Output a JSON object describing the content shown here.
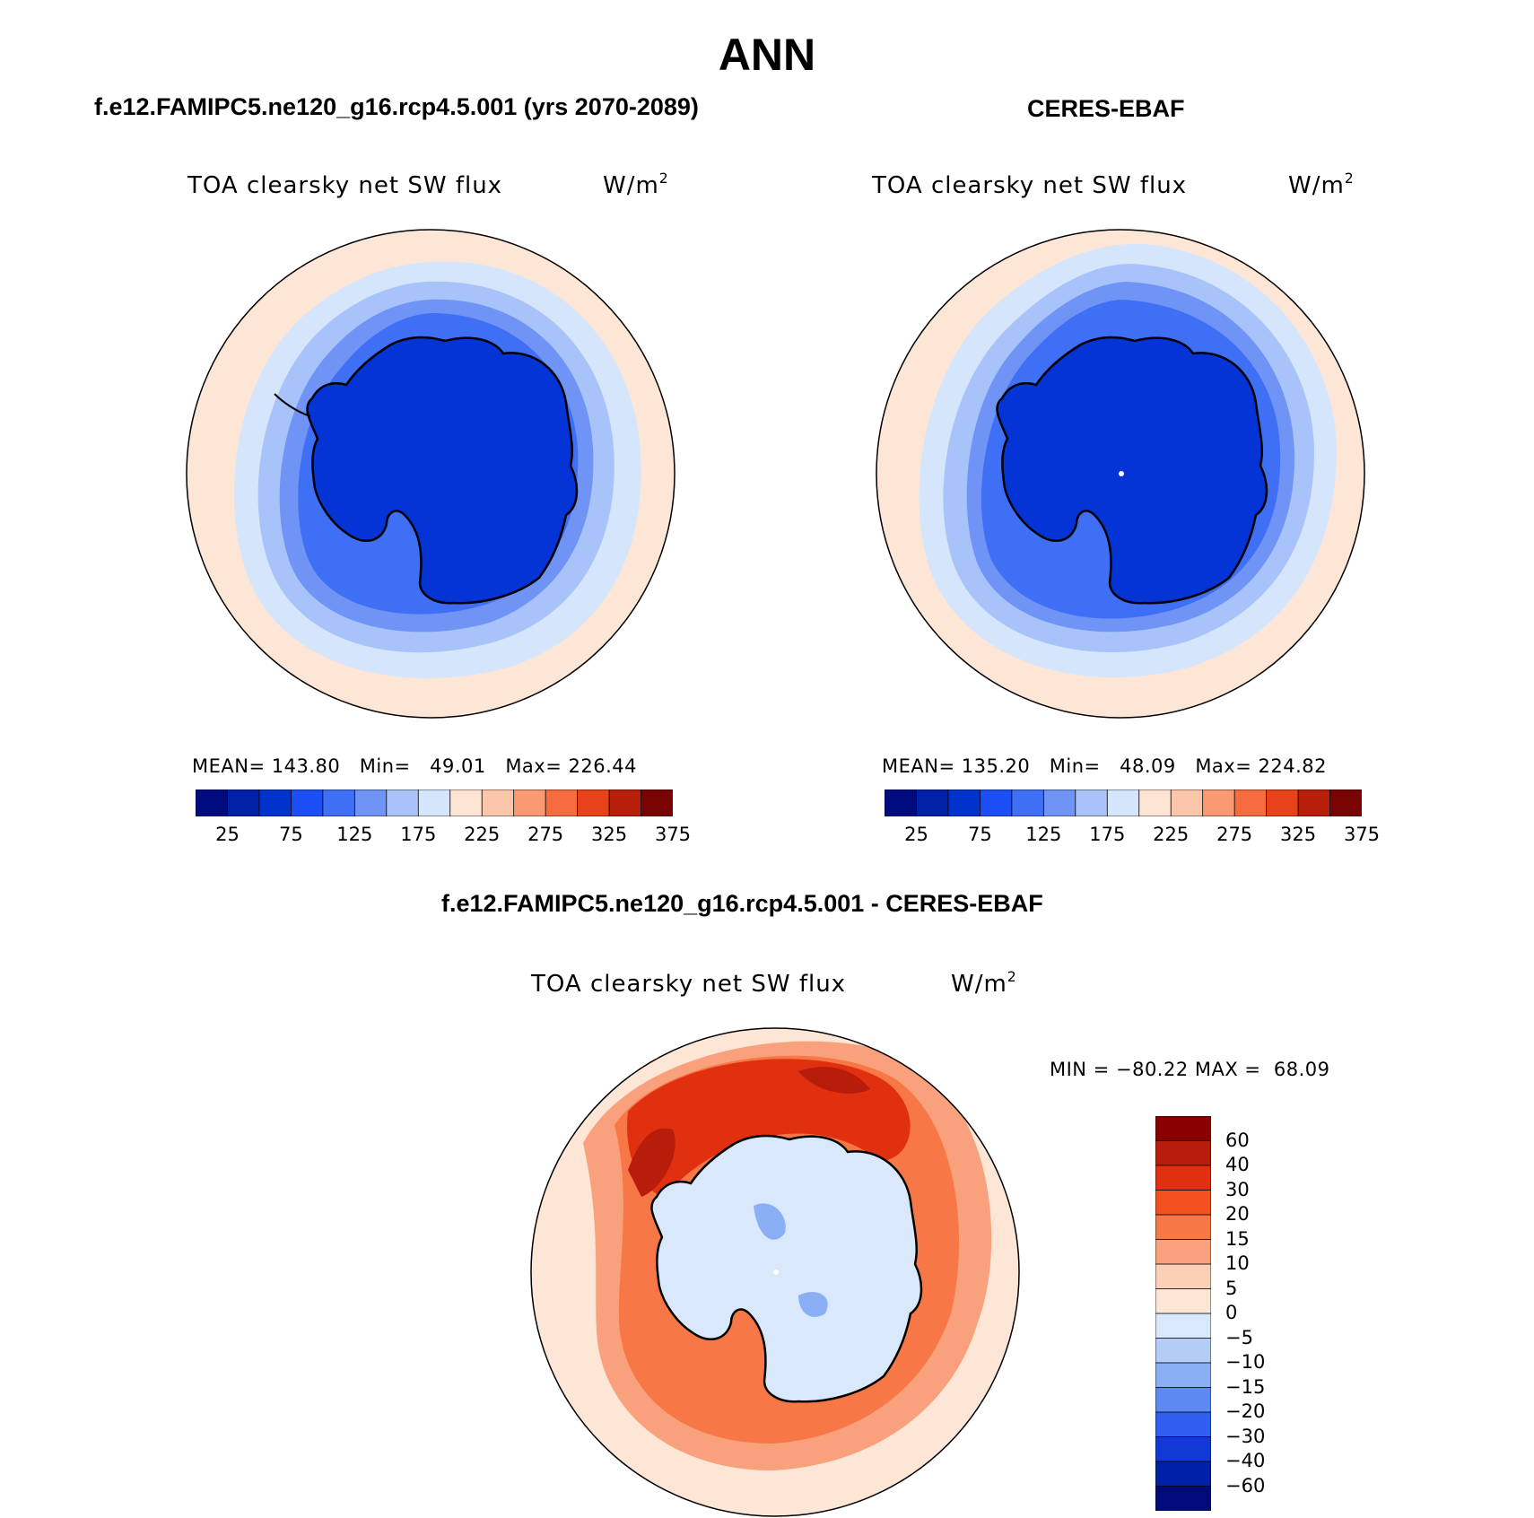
{
  "main_title": "ANN",
  "panels": [
    {
      "title": "f.e12.FAMIPC5.ne120_g16.rcp4.5.001 (yrs 2070-2089)",
      "variable": "TOA clearsky net SW flux",
      "units_base": "W/m",
      "units_exp": "2",
      "mean_label": "MEAN=",
      "mean_value": "143.80",
      "min_label": "Min=",
      "min_value": "49.01",
      "max_label": "Max=",
      "max_value": "226.44"
    },
    {
      "title": "CERES-EBAF",
      "variable": "TOA clearsky net SW flux",
      "units_base": "W/m",
      "units_exp": "2",
      "mean_label": "MEAN=",
      "mean_value": "135.20",
      "min_label": "Min=",
      "min_value": "48.09",
      "max_label": "Max=",
      "max_value": "224.82"
    }
  ],
  "abs_colorbar": {
    "colors": [
      "#000b80",
      "#0022a8",
      "#0033cc",
      "#1a4ff5",
      "#3f6ff5",
      "#6f94f5",
      "#a8c3fa",
      "#d5e5fb",
      "#fde4d3",
      "#fcc6aa",
      "#f99a73",
      "#f56d3f",
      "#e8421a",
      "#b81f0a",
      "#7a0403"
    ],
    "tick_labels": [
      "25",
      "75",
      "125",
      "175",
      "225",
      "275",
      "325",
      "375"
    ]
  },
  "diff_panel": {
    "title": "f.e12.FAMIPC5.ne120_g16.rcp4.5.001 - CERES-EBAF",
    "variable": "TOA clearsky net SW flux",
    "units_base": "W/m",
    "units_exp": "2",
    "min_label": "MIN =",
    "min_value": "−80.22",
    "max_label": "MAX =",
    "max_value": "68.09"
  },
  "diff_colorbar": {
    "colors": [
      "#8a0000",
      "#b81c0a",
      "#e0300f",
      "#f2501e",
      "#f77846",
      "#f9a07c",
      "#fbd0b6",
      "#fde6d6",
      "#d9e8fa",
      "#b3cdf7",
      "#8aaff5",
      "#5d8af2",
      "#2f5ef0",
      "#1238d6",
      "#0020a8",
      "#000a78"
    ],
    "tick_labels": [
      "60",
      "40",
      "30",
      "20",
      "15",
      "10",
      "5",
      "0",
      "−5",
      "−10",
      "−15",
      "−20",
      "−30",
      "−40",
      "−60"
    ]
  },
  "map_palette": {
    "outer": "#fde6d6",
    "ring1": "#d5e5fb",
    "ring2": "#a8c3fa",
    "ring3": "#6f94f5",
    "ring4": "#3f6ff5",
    "ice": "#0433d6",
    "diff_outer": "#fde6d6",
    "diff_warm1": "#f77846",
    "diff_warm2": "#e0300f",
    "diff_warm3": "#b81c0a",
    "diff_ice": "#d9e8fa",
    "diff_blue": "#8aaff5"
  }
}
